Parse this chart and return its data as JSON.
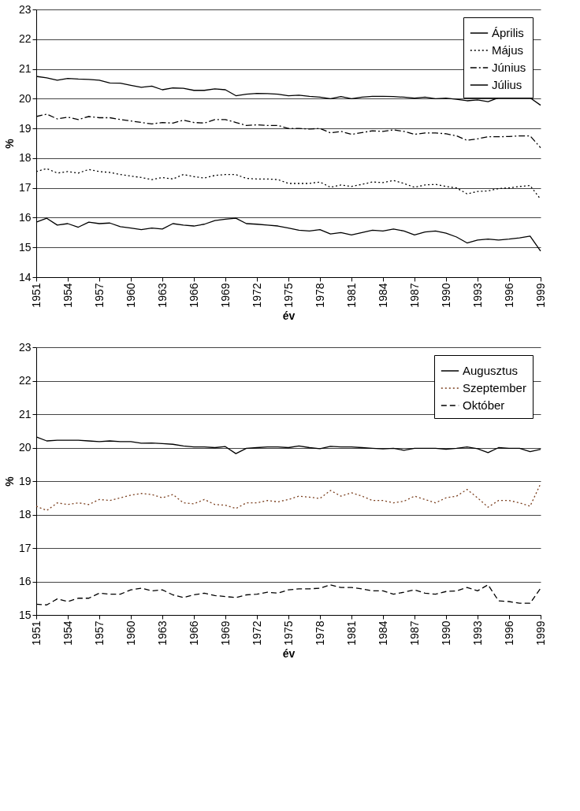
{
  "chart_data": [
    {
      "type": "line",
      "xlabel": "év",
      "ylabel": "%",
      "xlim": [
        1951,
        1999
      ],
      "xticks": [
        1951,
        1954,
        1957,
        1960,
        1963,
        1966,
        1969,
        1972,
        1975,
        1978,
        1981,
        1984,
        1987,
        1990,
        1993,
        1996,
        1999
      ],
      "ylim": [
        14,
        23
      ],
      "yticks": [
        14,
        15,
        16,
        17,
        18,
        19,
        20,
        21,
        22,
        23
      ],
      "grid": "y",
      "legend": "top right",
      "x": [
        1951,
        1952,
        1953,
        1954,
        1955,
        1956,
        1957,
        1958,
        1959,
        1960,
        1961,
        1962,
        1963,
        1964,
        1965,
        1966,
        1967,
        1968,
        1969,
        1970,
        1971,
        1972,
        1973,
        1974,
        1975,
        1976,
        1977,
        1978,
        1979,
        1980,
        1981,
        1982,
        1983,
        1984,
        1985,
        1986,
        1987,
        1988,
        1989,
        1990,
        1991,
        1992,
        1993,
        1994,
        1995,
        1996,
        1997,
        1998,
        1999
      ],
      "series": [
        {
          "name": "Április",
          "color": "#000000",
          "line_style": "solid",
          "values": [
            15.85,
            15.98,
            15.75,
            15.8,
            15.68,
            15.85,
            15.8,
            15.82,
            15.7,
            15.65,
            15.6,
            15.65,
            15.62,
            15.8,
            15.75,
            15.72,
            15.78,
            15.9,
            15.95,
            15.98,
            15.8,
            15.78,
            15.75,
            15.72,
            15.65,
            15.58,
            15.55,
            15.6,
            15.45,
            15.5,
            15.42,
            15.5,
            15.58,
            15.55,
            15.62,
            15.55,
            15.42,
            15.52,
            15.55,
            15.48,
            15.35,
            15.15,
            15.25,
            15.28,
            15.25,
            15.28,
            15.32,
            15.38,
            14.88
          ]
        },
        {
          "name": "Május",
          "color": "#000000",
          "line_style": "dotted",
          "values": [
            17.55,
            17.65,
            17.5,
            17.55,
            17.5,
            17.62,
            17.55,
            17.52,
            17.45,
            17.4,
            17.35,
            17.28,
            17.35,
            17.3,
            17.45,
            17.38,
            17.33,
            17.42,
            17.45,
            17.45,
            17.32,
            17.3,
            17.3,
            17.28,
            17.15,
            17.15,
            17.15,
            17.2,
            17.02,
            17.1,
            17.05,
            17.12,
            17.2,
            17.18,
            17.25,
            17.15,
            17.02,
            17.1,
            17.12,
            17.05,
            17.0,
            16.8,
            16.88,
            16.9,
            16.98,
            17.0,
            17.05,
            17.08,
            16.62
          ]
        },
        {
          "name": "Június",
          "color": "#000000",
          "line_style": "dashdot",
          "values": [
            19.4,
            19.48,
            19.32,
            19.38,
            19.3,
            19.4,
            19.36,
            19.36,
            19.3,
            19.25,
            19.2,
            19.15,
            19.2,
            19.18,
            19.28,
            19.2,
            19.18,
            19.3,
            19.3,
            19.2,
            19.1,
            19.12,
            19.1,
            19.1,
            19.0,
            19.0,
            18.98,
            19.0,
            18.85,
            18.9,
            18.8,
            18.86,
            18.92,
            18.9,
            18.95,
            18.9,
            18.8,
            18.85,
            18.85,
            18.82,
            18.75,
            18.6,
            18.65,
            18.72,
            18.72,
            18.73,
            18.75,
            18.75,
            18.35
          ]
        },
        {
          "name": "Július",
          "color": "#000000",
          "line_style": "solid",
          "values": [
            20.75,
            20.7,
            20.62,
            20.68,
            20.66,
            20.65,
            20.62,
            20.53,
            20.52,
            20.45,
            20.38,
            20.42,
            20.3,
            20.36,
            20.35,
            20.28,
            20.28,
            20.33,
            20.3,
            20.1,
            20.15,
            20.18,
            20.17,
            20.15,
            20.1,
            20.12,
            20.08,
            20.05,
            20.0,
            20.07,
            20.0,
            20.05,
            20.08,
            20.08,
            20.07,
            20.05,
            20.02,
            20.05,
            20.0,
            20.02,
            19.98,
            19.93,
            19.96,
            19.9,
            20.03,
            20.03,
            20.06,
            20.03,
            19.78
          ]
        }
      ]
    },
    {
      "type": "line",
      "xlabel": "év",
      "ylabel": "%",
      "xlim": [
        1951,
        1999
      ],
      "xticks": [
        1951,
        1954,
        1957,
        1960,
        1963,
        1966,
        1969,
        1972,
        1975,
        1978,
        1981,
        1984,
        1987,
        1990,
        1993,
        1996,
        1999
      ],
      "ylim": [
        15,
        23
      ],
      "yticks": [
        15,
        16,
        17,
        18,
        19,
        20,
        21,
        22,
        23
      ],
      "grid": "y",
      "legend": "top right",
      "x": [
        1951,
        1952,
        1953,
        1954,
        1955,
        1956,
        1957,
        1958,
        1959,
        1960,
        1961,
        1962,
        1963,
        1964,
        1965,
        1966,
        1967,
        1968,
        1969,
        1970,
        1971,
        1972,
        1973,
        1974,
        1975,
        1976,
        1977,
        1978,
        1979,
        1980,
        1981,
        1982,
        1983,
        1984,
        1985,
        1986,
        1987,
        1988,
        1989,
        1990,
        1991,
        1992,
        1993,
        1994,
        1995,
        1996,
        1997,
        1998,
        1999
      ],
      "series": [
        {
          "name": "Augusztus",
          "color": "#000000",
          "line_style": "solid",
          "values": [
            20.32,
            20.2,
            20.22,
            20.22,
            20.22,
            20.2,
            20.18,
            20.2,
            20.18,
            20.18,
            20.13,
            20.14,
            20.12,
            20.1,
            20.05,
            20.02,
            20.02,
            20.0,
            20.03,
            19.82,
            19.98,
            20.0,
            20.02,
            20.02,
            20.0,
            20.05,
            20.0,
            19.97,
            20.04,
            20.02,
            20.02,
            20.0,
            19.98,
            19.96,
            19.98,
            19.92,
            19.98,
            19.98,
            19.98,
            19.95,
            19.98,
            20.02,
            19.97,
            19.85,
            20.0,
            19.98,
            19.98,
            19.88,
            19.95
          ]
        },
        {
          "name": "Szeptember",
          "color": "#7b3f1e",
          "line_style": "dotted",
          "values": [
            18.25,
            18.12,
            18.35,
            18.3,
            18.35,
            18.3,
            18.45,
            18.42,
            18.5,
            18.58,
            18.63,
            18.6,
            18.5,
            18.6,
            18.35,
            18.32,
            18.45,
            18.3,
            18.28,
            18.18,
            18.35,
            18.35,
            18.42,
            18.38,
            18.45,
            18.55,
            18.52,
            18.48,
            18.72,
            18.55,
            18.65,
            18.55,
            18.42,
            18.42,
            18.35,
            18.4,
            18.55,
            18.45,
            18.35,
            18.5,
            18.55,
            18.75,
            18.5,
            18.22,
            18.42,
            18.42,
            18.35,
            18.25,
            18.92
          ]
        },
        {
          "name": "Október",
          "color": "#000000",
          "line_style": "dashed",
          "values": [
            15.32,
            15.3,
            15.48,
            15.4,
            15.5,
            15.5,
            15.65,
            15.62,
            15.62,
            15.75,
            15.8,
            15.72,
            15.75,
            15.6,
            15.52,
            15.6,
            15.65,
            15.58,
            15.55,
            15.52,
            15.6,
            15.62,
            15.68,
            15.65,
            15.75,
            15.78,
            15.78,
            15.8,
            15.9,
            15.82,
            15.82,
            15.78,
            15.72,
            15.72,
            15.62,
            15.68,
            15.75,
            15.65,
            15.62,
            15.7,
            15.72,
            15.82,
            15.72,
            15.9,
            15.42,
            15.4,
            15.35,
            15.35,
            15.8
          ]
        }
      ]
    }
  ]
}
